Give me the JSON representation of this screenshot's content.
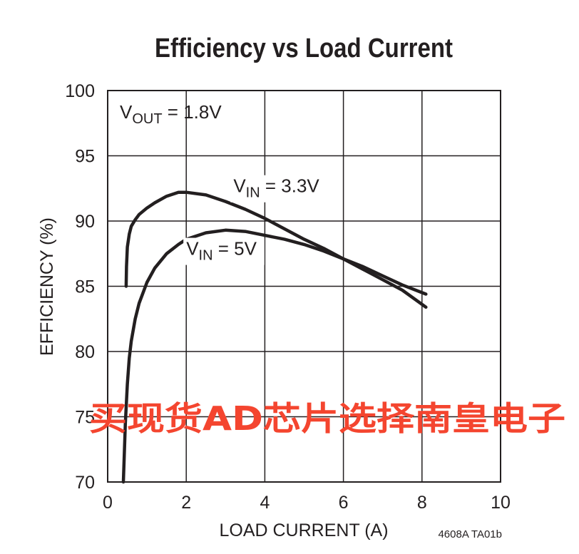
{
  "chart_data": {
    "type": "line",
    "title": "Efficiency vs Load Current",
    "xlabel": "LOAD CURRENT (A)",
    "ylabel": "EFFICIENCY (%)",
    "xlim": [
      0,
      10
    ],
    "ylim": [
      70,
      100
    ],
    "x_ticks": [
      0,
      2,
      4,
      6,
      8,
      10
    ],
    "y_ticks": [
      70,
      75,
      80,
      85,
      90,
      95,
      100
    ],
    "grid": true,
    "annotation": {
      "main": "V",
      "sub": "OUT",
      "rest": " = 1.8V"
    },
    "figure_code": "4608A TA01b",
    "series": [
      {
        "label_main": "V",
        "label_sub": "IN",
        "label_rest": " = 3.3V",
        "label_at": [
          3.2,
          92.2
        ],
        "x": [
          0.47,
          0.48,
          0.5,
          0.55,
          0.6,
          0.7,
          0.8,
          1.0,
          1.2,
          1.5,
          1.8,
          2.0,
          2.5,
          3.0,
          3.5,
          4.0,
          4.5,
          5.0,
          5.5,
          6.0,
          6.5,
          7.0,
          7.5,
          8.1
        ],
        "y": [
          85.0,
          86.5,
          88.0,
          89.0,
          89.6,
          90.1,
          90.5,
          91.0,
          91.4,
          91.9,
          92.2,
          92.2,
          92.0,
          91.5,
          90.9,
          90.2,
          89.4,
          88.6,
          87.9,
          87.1,
          86.3,
          85.5,
          84.7,
          83.4
        ]
      },
      {
        "label_main": "V",
        "label_sub": "IN",
        "label_rest": " = 5V",
        "label_at": [
          2.0,
          87.4
        ],
        "x": [
          0.4,
          0.45,
          0.5,
          0.55,
          0.6,
          0.7,
          0.8,
          1.0,
          1.2,
          1.5,
          1.8,
          2.0,
          2.5,
          3.0,
          3.5,
          4.0,
          4.5,
          5.0,
          5.5,
          6.0,
          6.5,
          7.0,
          7.5,
          8.1
        ],
        "y": [
          70.0,
          74.5,
          77.5,
          79.5,
          80.8,
          82.5,
          83.7,
          85.3,
          86.4,
          87.5,
          88.2,
          88.6,
          89.1,
          89.3,
          89.2,
          88.9,
          88.6,
          88.2,
          87.7,
          87.1,
          86.5,
          85.8,
          85.1,
          84.4
        ]
      }
    ]
  },
  "watermark": "买现货AD芯片选择南皇电子"
}
